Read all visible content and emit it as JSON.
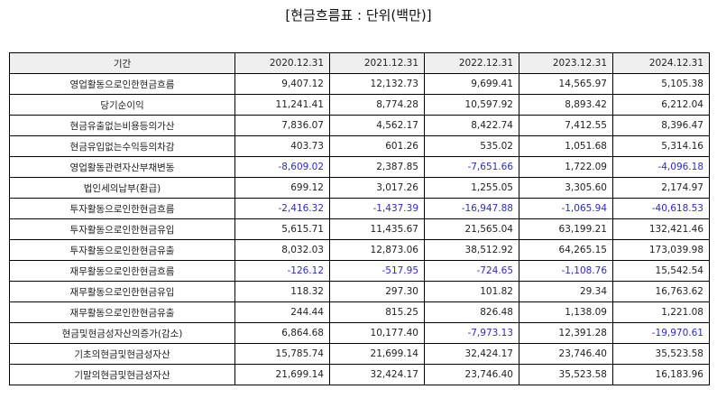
{
  "title": "[현금흐름표 : 단위(백만)]",
  "columns": [
    "기간",
    "2020.12.31",
    "2021.12.31",
    "2022.12.31",
    "2023.12.31",
    "2024.12.31"
  ],
  "rows": [
    {
      "label": "영업활동으로인한현금흐름",
      "values": [
        "9,407.12",
        "12,132.73",
        "9,699.41",
        "14,565.97",
        "5,105.38"
      ]
    },
    {
      "label": "당기순이익",
      "values": [
        "11,241.41",
        "8,774.28",
        "10,597.92",
        "8,893.42",
        "6,212.04"
      ]
    },
    {
      "label": "현금유출없는비용등의가산",
      "values": [
        "7,836.07",
        "4,562.17",
        "8,422.74",
        "7,412.55",
        "8,396.47"
      ]
    },
    {
      "label": "현금유입없는수익등의차감",
      "values": [
        "403.73",
        "601.26",
        "535.02",
        "1,051.68",
        "5,314.16"
      ]
    },
    {
      "label": "영업활동관련자산부채변동",
      "values": [
        "-8,609.02",
        "2,387.85",
        "-7,651.66",
        "1,722.09",
        "-4,096.18"
      ]
    },
    {
      "label": "법인세의납부(환급)",
      "values": [
        "699.12",
        "3,017.26",
        "1,255.05",
        "3,305.60",
        "2,174.97"
      ]
    },
    {
      "label": "투자활동으로인한현금흐름",
      "values": [
        "-2,416.32",
        "-1,437.39",
        "-16,947.88",
        "-1,065.94",
        "-40,618.53"
      ]
    },
    {
      "label": "투자활동으로인한현금유입",
      "values": [
        "5,615.71",
        "11,435.67",
        "21,565.04",
        "63,199.21",
        "132,421.46"
      ]
    },
    {
      "label": "투자활동으로인한현금유출",
      "values": [
        "8,032.03",
        "12,873.06",
        "38,512.92",
        "64,265.15",
        "173,039.98"
      ]
    },
    {
      "label": "재무활동으로인한현금흐름",
      "values": [
        "-126.12",
        "-517.95",
        "-724.65",
        "-1,108.76",
        "15,542.54"
      ]
    },
    {
      "label": "재무활동으로인한현금유입",
      "values": [
        "118.32",
        "297.30",
        "101.82",
        "29.34",
        "16,763.62"
      ]
    },
    {
      "label": "재무활동으로인한현금유출",
      "values": [
        "244.44",
        "815.25",
        "826.48",
        "1,138.09",
        "1,221.08"
      ]
    },
    {
      "label": "현금및현금성자산의증가(감소)",
      "values": [
        "6,864.68",
        "10,177.40",
        "-7,973.13",
        "12,391.28",
        "-19,970.61"
      ]
    },
    {
      "label": "기초의현금및현금성자산",
      "values": [
        "15,785.74",
        "21,699.14",
        "32,424.17",
        "23,746.40",
        "35,523.58"
      ]
    },
    {
      "label": "기말의현금및현금성자산",
      "values": [
        "21,699.14",
        "32,424.17",
        "23,746.40",
        "35,523.58",
        "16,183.96"
      ]
    }
  ],
  "colors": {
    "negative": "#2a2ad8",
    "header_bg": "#efefef",
    "border": "#000000"
  }
}
